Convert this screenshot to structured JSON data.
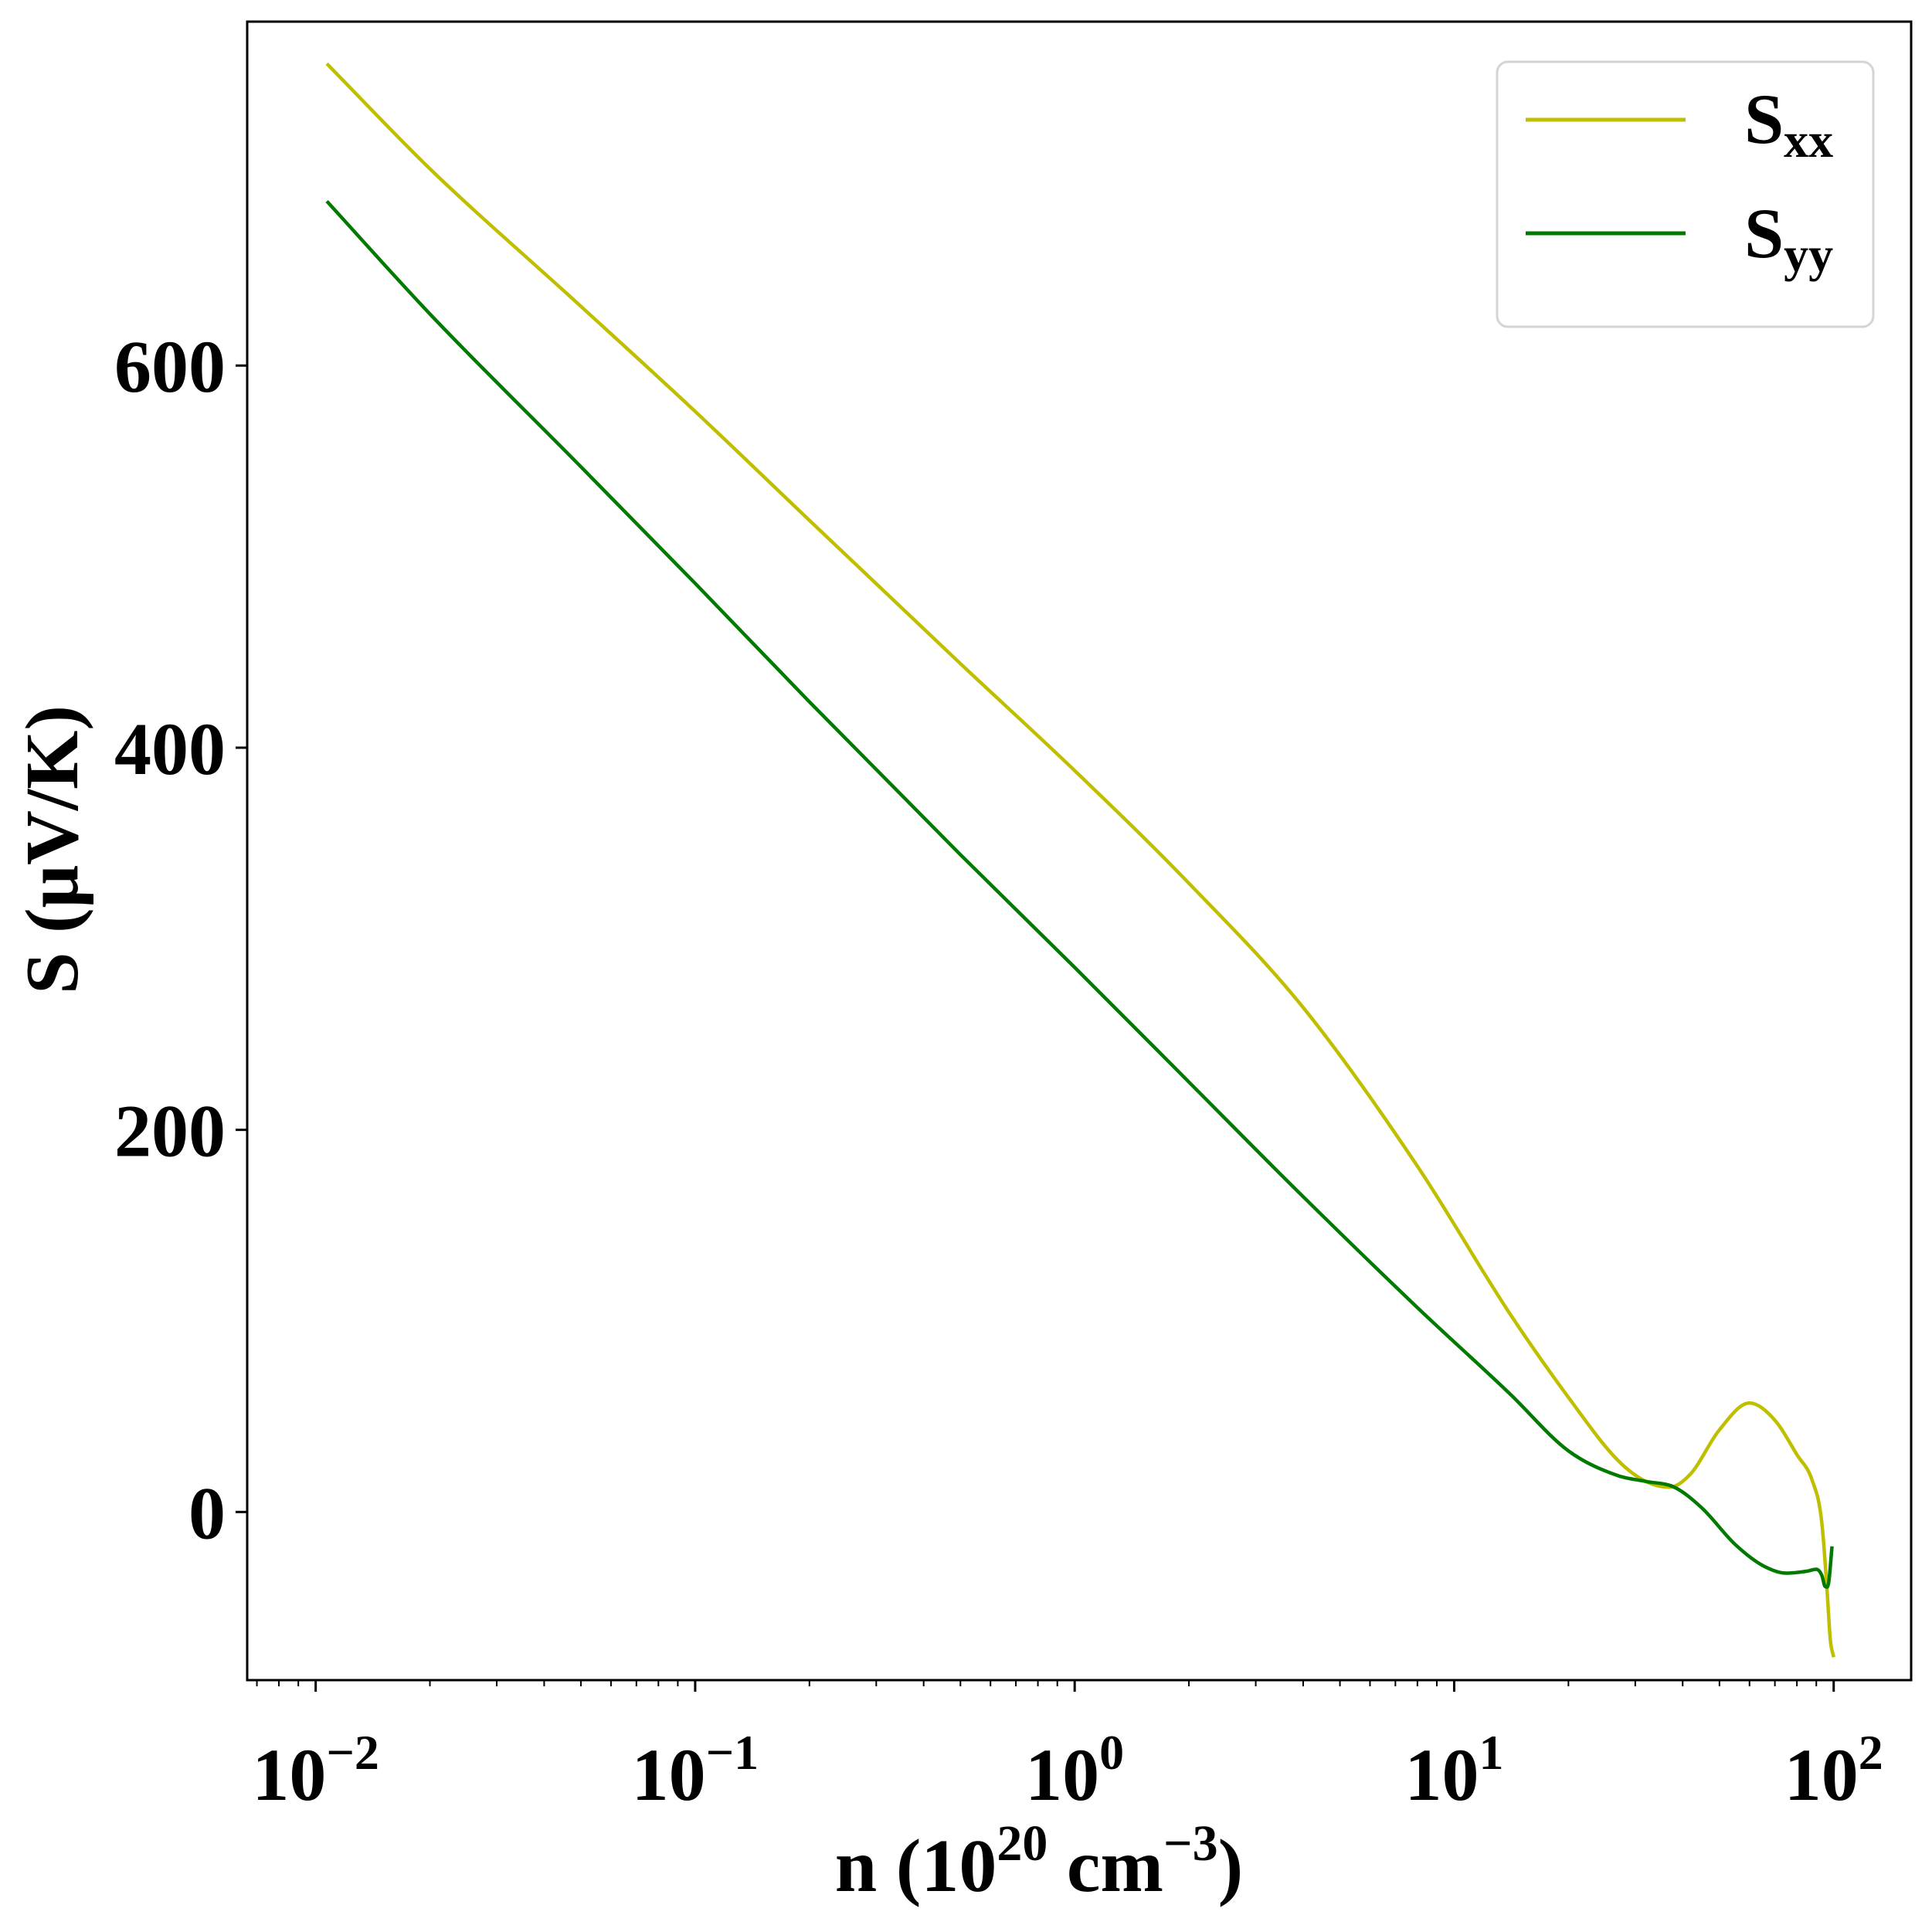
{
  "chart_data": {
    "type": "line",
    "xscale": "log",
    "xlim": [
      0.0066,
      160
    ],
    "ylim": [
      -88,
      780
    ],
    "xlabel": {
      "base": "n (10",
      "sup1": "20",
      "mid": " cm",
      "sup2": "−3",
      "end": ")"
    },
    "ylabel": "S (μV/K)",
    "xticks": [
      {
        "value": 0.01,
        "base": "10",
        "exp": "−2"
      },
      {
        "value": 0.1,
        "base": "10",
        "exp": "−1"
      },
      {
        "value": 1,
        "base": "10",
        "exp": "0"
      },
      {
        "value": 10,
        "base": "10",
        "exp": "1"
      },
      {
        "value": 100,
        "base": "10",
        "exp": "2"
      }
    ],
    "yticks": [
      0,
      200,
      400,
      600
    ],
    "grid": false,
    "legend": {
      "position": "top-right"
    },
    "series": [
      {
        "name": "S",
        "sub": "xx",
        "color": "#bfbf00",
        "x": [
          0.0107,
          0.02,
          0.05,
          0.1,
          0.2,
          0.5,
          1,
          2,
          4,
          8,
          14,
          20,
          27,
          32,
          37,
          42,
          50,
          60,
          70,
          80,
          88,
          93,
          96,
          98,
          100
        ],
        "y": [
          758,
          703,
          631,
          576,
          519,
          444,
          388,
          329,
          264,
          181,
          104,
          60,
          27,
          16,
          13,
          20,
          43,
          57,
          48,
          30,
          16,
          -5,
          -40,
          -67,
          -76
        ]
      },
      {
        "name": "S",
        "sub": "yy",
        "color": "#007a00",
        "x": [
          0.0107,
          0.02,
          0.05,
          0.1,
          0.2,
          0.5,
          1,
          2,
          4,
          8,
          14,
          20,
          27,
          32,
          38,
          45,
          55,
          65,
          75,
          85,
          90,
          93,
          95,
          97,
          99
        ],
        "y": [
          686,
          627,
          547,
          486,
          424,
          344,
          285,
          225,
          165,
          107,
          62,
          32,
          19,
          16,
          13,
          2,
          -17,
          -28,
          -32,
          -31,
          -30,
          -33,
          -39,
          -37,
          -18
        ]
      }
    ]
  }
}
